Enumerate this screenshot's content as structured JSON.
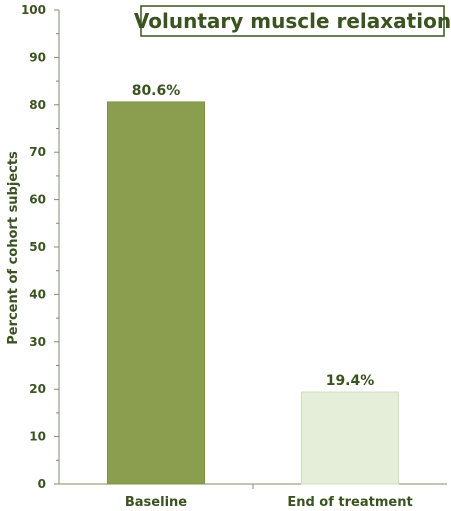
{
  "chart_data": {
    "type": "bar",
    "title": "Voluntary muscle relaxation",
    "ylabel": "Percent of cohort subjects",
    "xlabel": "",
    "ylim": [
      0,
      100
    ],
    "yticks": [
      0,
      10,
      20,
      30,
      40,
      50,
      60,
      70,
      80,
      90,
      100
    ],
    "categories": [
      "Baseline",
      "End of treatment"
    ],
    "values": [
      80.6,
      19.4
    ],
    "data_labels": [
      "80.6%",
      "19.4%"
    ],
    "bar_colors": [
      "#8b9e50",
      "#e4eed9"
    ],
    "bar_borders": [
      "#7d9043",
      "#cfe0bd"
    ],
    "grid": false,
    "legend": "none"
  }
}
